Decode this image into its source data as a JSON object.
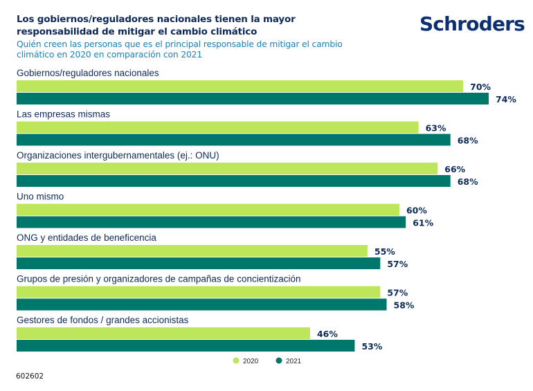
{
  "header": {
    "title": "Los gobiernos/reguladores nacionales tienen la mayor responsabilidad de mitigar el cambio climático",
    "subtitle": "Quién creen las personas que es el principal responsable de mitigar el cambio climático en 2020 en comparación con 2021",
    "logo": "Schroders"
  },
  "footnote": "602602",
  "colors": {
    "series_2020": "#bde65b",
    "series_2021": "#00776b",
    "text_dark": "#0d2a5a",
    "subtitle": "#1b7fb8",
    "logo": "#0d2f73"
  },
  "chart_data": {
    "type": "bar",
    "orientation": "horizontal",
    "title": "Los gobiernos/reguladores nacionales tienen la mayor responsabilidad de mitigar el cambio climático",
    "subtitle": "Quién creen las personas que es el principal responsable de mitigar el cambio climático en 2020 en comparación con 2021",
    "xlabel": "",
    "ylabel": "",
    "xlim": [
      0,
      100
    ],
    "unit": "%",
    "grid": false,
    "legend_position": "bottom-center",
    "categories": [
      "Gobiernos/reguladores nacionales",
      "Las empresas mismas",
      "Organizaciones intergubernamentales (ej.: ONU)",
      "Uno mismo",
      "ONG y entidades de beneficencia",
      "Grupos de presión y organizadores de campañas de concientización",
      "Gestores de fondos / grandes accionistas"
    ],
    "series": [
      {
        "name": "2020",
        "color": "#bde65b",
        "values": [
          70,
          63,
          66,
          60,
          55,
          57,
          46
        ],
        "labels": [
          "70%",
          "63%",
          "66%",
          "60%",
          "55%",
          "57%",
          "46%"
        ]
      },
      {
        "name": "2021",
        "color": "#00776b",
        "values": [
          74,
          68,
          68,
          61,
          57,
          58,
          53
        ],
        "labels": [
          "74%",
          "68%",
          "68%",
          "61%",
          "57%",
          "58%",
          "53%"
        ]
      }
    ]
  }
}
